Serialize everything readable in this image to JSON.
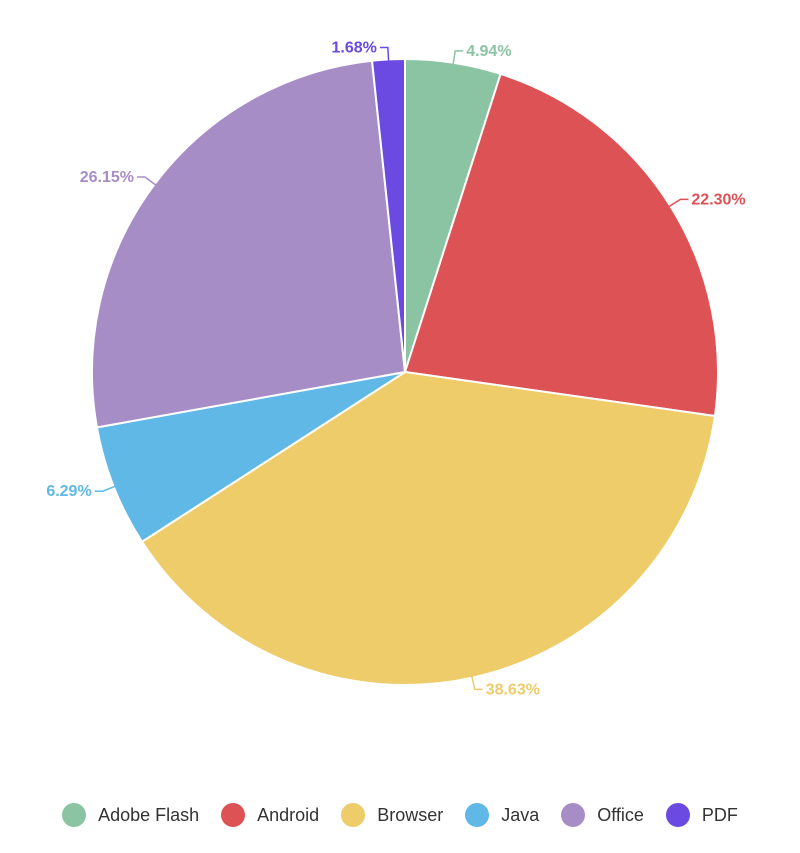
{
  "chart_data": {
    "type": "pie",
    "title": "",
    "legend_position": "bottom",
    "slices": [
      {
        "name": "Adobe Flash",
        "value": 4.94,
        "label": "4.94%",
        "color": "#8bc4a3"
      },
      {
        "name": "Android",
        "value": 22.3,
        "label": "22.30%",
        "color": "#dd5254"
      },
      {
        "name": "Browser",
        "value": 38.63,
        "label": "38.63%",
        "color": "#eecc6a"
      },
      {
        "name": "Java",
        "value": 6.29,
        "label": "6.29%",
        "color": "#5fb8e5"
      },
      {
        "name": "Office",
        "value": 26.15,
        "label": "26.15%",
        "color": "#a78dc6"
      },
      {
        "name": "PDF",
        "value": 1.68,
        "label": "1.68%",
        "color": "#6a4ae0"
      }
    ]
  }
}
